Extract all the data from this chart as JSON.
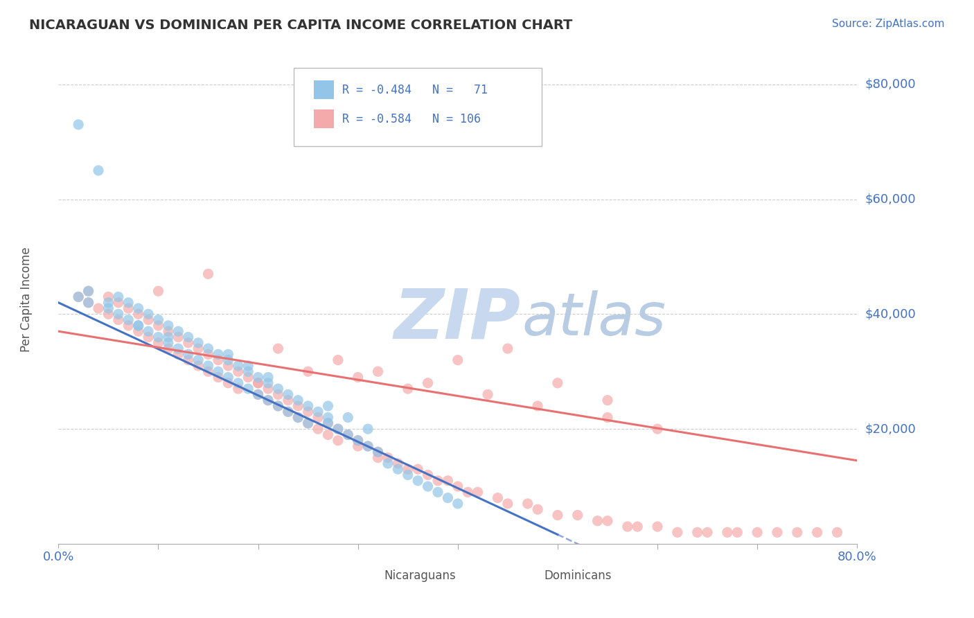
{
  "title": "NICARAGUAN VS DOMINICAN PER CAPITA INCOME CORRELATION CHART",
  "source_text": "Source: ZipAtlas.com",
  "ylabel": "Per Capita Income",
  "xmin": 0.0,
  "xmax": 0.8,
  "ymin": 0,
  "ymax": 85000,
  "blue_color": "#92C5E8",
  "pink_color": "#F4AAAA",
  "line_blue": "#4472C4",
  "line_pink": "#E87070",
  "text_blue": "#4472C4",
  "background": "#FFFFFF",
  "watermark_zip_color": "#C8D8EE",
  "watermark_atlas_color": "#B8CCE4",
  "legend_label1": "Nicaraguans",
  "legend_label2": "Dominicans",
  "blue_scatter_x": [
    0.02,
    0.04,
    0.03,
    0.02,
    0.03,
    0.05,
    0.06,
    0.05,
    0.06,
    0.07,
    0.07,
    0.08,
    0.08,
    0.09,
    0.09,
    0.1,
    0.1,
    0.11,
    0.11,
    0.12,
    0.12,
    0.13,
    0.13,
    0.14,
    0.14,
    0.15,
    0.15,
    0.16,
    0.16,
    0.17,
    0.17,
    0.18,
    0.18,
    0.19,
    0.19,
    0.2,
    0.2,
    0.21,
    0.21,
    0.22,
    0.22,
    0.23,
    0.23,
    0.24,
    0.24,
    0.25,
    0.25,
    0.26,
    0.27,
    0.27,
    0.28,
    0.29,
    0.3,
    0.31,
    0.32,
    0.33,
    0.34,
    0.35,
    0.36,
    0.37,
    0.38,
    0.39,
    0.4,
    0.27,
    0.29,
    0.31,
    0.17,
    0.19,
    0.21,
    0.08,
    0.11
  ],
  "blue_scatter_y": [
    73000,
    65000,
    44000,
    43000,
    42000,
    42000,
    43000,
    41000,
    40000,
    42000,
    39000,
    41000,
    38000,
    40000,
    37000,
    39000,
    36000,
    38000,
    35000,
    37000,
    34000,
    36000,
    33000,
    35000,
    32000,
    34000,
    31000,
    33000,
    30000,
    32000,
    29000,
    31000,
    28000,
    30000,
    27000,
    29000,
    26000,
    28000,
    25000,
    27000,
    24000,
    26000,
    23000,
    25000,
    22000,
    24000,
    21000,
    23000,
    22000,
    21000,
    20000,
    19000,
    18000,
    17000,
    16000,
    14000,
    13000,
    12000,
    11000,
    10000,
    9000,
    8000,
    7000,
    24000,
    22000,
    20000,
    33000,
    31000,
    29000,
    38000,
    36000
  ],
  "pink_scatter_x": [
    0.02,
    0.03,
    0.03,
    0.04,
    0.05,
    0.05,
    0.06,
    0.06,
    0.07,
    0.07,
    0.08,
    0.08,
    0.09,
    0.09,
    0.1,
    0.1,
    0.11,
    0.11,
    0.12,
    0.12,
    0.13,
    0.13,
    0.14,
    0.14,
    0.15,
    0.15,
    0.16,
    0.16,
    0.17,
    0.17,
    0.18,
    0.18,
    0.19,
    0.2,
    0.2,
    0.21,
    0.21,
    0.22,
    0.22,
    0.23,
    0.23,
    0.24,
    0.24,
    0.25,
    0.25,
    0.26,
    0.26,
    0.27,
    0.27,
    0.28,
    0.28,
    0.29,
    0.3,
    0.3,
    0.31,
    0.32,
    0.32,
    0.33,
    0.34,
    0.35,
    0.36,
    0.37,
    0.38,
    0.39,
    0.4,
    0.41,
    0.42,
    0.44,
    0.45,
    0.47,
    0.48,
    0.5,
    0.52,
    0.54,
    0.55,
    0.57,
    0.58,
    0.6,
    0.62,
    0.64,
    0.65,
    0.67,
    0.68,
    0.7,
    0.72,
    0.74,
    0.76,
    0.78,
    0.2,
    0.25,
    0.3,
    0.35,
    0.15,
    0.4,
    0.1,
    0.45,
    0.5,
    0.55,
    0.22,
    0.28,
    0.32,
    0.37,
    0.43,
    0.48,
    0.55,
    0.6
  ],
  "pink_scatter_y": [
    43000,
    44000,
    42000,
    41000,
    43000,
    40000,
    42000,
    39000,
    41000,
    38000,
    40000,
    37000,
    39000,
    36000,
    38000,
    35000,
    37000,
    34000,
    36000,
    33000,
    35000,
    32000,
    34000,
    31000,
    33000,
    30000,
    32000,
    29000,
    31000,
    28000,
    30000,
    27000,
    29000,
    28000,
    26000,
    27000,
    25000,
    26000,
    24000,
    25000,
    23000,
    24000,
    22000,
    23000,
    21000,
    22000,
    20000,
    21000,
    19000,
    20000,
    18000,
    19000,
    18000,
    17000,
    17000,
    16000,
    15000,
    15000,
    14000,
    13000,
    13000,
    12000,
    11000,
    11000,
    10000,
    9000,
    9000,
    8000,
    7000,
    7000,
    6000,
    5000,
    5000,
    4000,
    4000,
    3000,
    3000,
    3000,
    2000,
    2000,
    2000,
    2000,
    2000,
    2000,
    2000,
    2000,
    2000,
    2000,
    28000,
    30000,
    29000,
    27000,
    47000,
    32000,
    44000,
    34000,
    28000,
    25000,
    34000,
    32000,
    30000,
    28000,
    26000,
    24000,
    22000,
    20000
  ]
}
